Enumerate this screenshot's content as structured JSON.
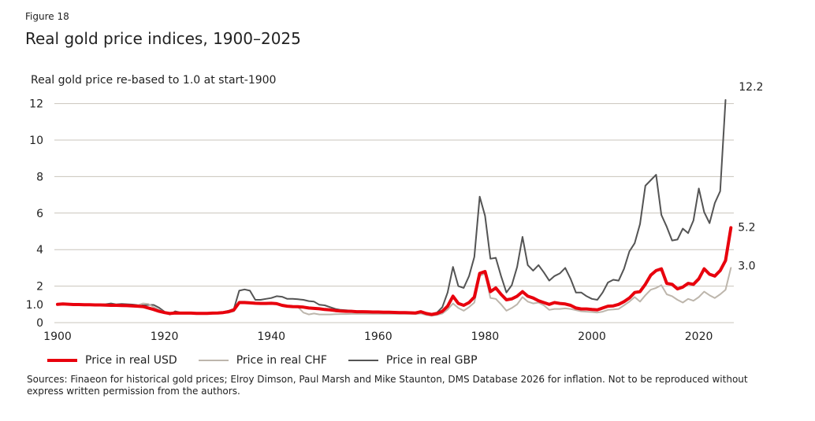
{
  "figure_label": "Figure 18",
  "title": "Real gold price indices, 1900–2025",
  "y_axis_caption": "Real gold price re-based to 1.0 at start-1900",
  "sources": "Sources: Finaeon for historical gold prices; Elroy Dimson, Paul Marsh and Mike Staunton, DMS Database 2026 for inflation. Not to be reproduced without express written permission from the authors.",
  "chart_data": {
    "type": "line",
    "title": "Real gold price indices, 1900–2025",
    "xlabel": "",
    "ylabel": "Real gold price re-based to 1.0 at start-1900",
    "xlim": [
      1900,
      2026
    ],
    "ylim": [
      0,
      12.5
    ],
    "grid": true,
    "x_ticks": [
      1900,
      1920,
      1940,
      1960,
      1980,
      2000,
      2020
    ],
    "x_tick_labels": [
      "1900",
      "1920",
      "1940",
      "1960",
      "1980",
      "2000",
      "2020"
    ],
    "y_ticks": [
      0,
      1,
      2,
      4,
      6,
      8,
      10,
      12
    ],
    "y_tick_labels": [
      "0",
      "1.0",
      "2",
      "4",
      "6",
      "8",
      "10",
      "12"
    ],
    "legend_position": "bottom",
    "x": [
      1900,
      1901,
      1902,
      1903,
      1904,
      1905,
      1906,
      1907,
      1908,
      1909,
      1910,
      1911,
      1912,
      1913,
      1914,
      1915,
      1916,
      1917,
      1918,
      1919,
      1920,
      1921,
      1922,
      1923,
      1924,
      1925,
      1926,
      1927,
      1928,
      1929,
      1930,
      1931,
      1932,
      1933,
      1934,
      1935,
      1936,
      1937,
      1938,
      1939,
      1940,
      1941,
      1942,
      1943,
      1944,
      1945,
      1946,
      1947,
      1948,
      1949,
      1950,
      1951,
      1952,
      1953,
      1954,
      1955,
      1956,
      1957,
      1958,
      1959,
      1960,
      1961,
      1962,
      1963,
      1964,
      1965,
      1966,
      1967,
      1968,
      1969,
      1970,
      1971,
      1972,
      1973,
      1974,
      1975,
      1976,
      1977,
      1978,
      1979,
      1980,
      1981,
      1982,
      1983,
      1984,
      1985,
      1986,
      1987,
      1988,
      1989,
      1990,
      1991,
      1992,
      1993,
      1994,
      1995,
      1996,
      1997,
      1998,
      1999,
      2000,
      2001,
      2002,
      2003,
      2004,
      2005,
      2006,
      2007,
      2008,
      2009,
      2010,
      2011,
      2012,
      2013,
      2014,
      2015,
      2016,
      2017,
      2018,
      2019,
      2020,
      2021,
      2022,
      2023,
      2024,
      2025,
      2026
    ],
    "series": [
      {
        "name": "Price in real USD",
        "color": "#e8000d",
        "values": [
          1.0,
          1.02,
          1.01,
          0.99,
          0.99,
          0.98,
          0.98,
          0.97,
          0.97,
          0.96,
          0.95,
          0.95,
          0.94,
          0.93,
          0.92,
          0.9,
          0.88,
          0.8,
          0.72,
          0.62,
          0.55,
          0.5,
          0.53,
          0.52,
          0.52,
          0.52,
          0.51,
          0.51,
          0.51,
          0.52,
          0.53,
          0.55,
          0.6,
          0.7,
          1.1,
          1.1,
          1.08,
          1.06,
          1.05,
          1.05,
          1.06,
          1.04,
          0.95,
          0.9,
          0.88,
          0.87,
          0.85,
          0.8,
          0.78,
          0.76,
          0.72,
          0.7,
          0.66,
          0.64,
          0.62,
          0.62,
          0.6,
          0.6,
          0.59,
          0.58,
          0.58,
          0.57,
          0.57,
          0.56,
          0.55,
          0.55,
          0.54,
          0.53,
          0.6,
          0.5,
          0.45,
          0.5,
          0.62,
          0.9,
          1.45,
          1.05,
          0.95,
          1.1,
          1.4,
          2.7,
          2.8,
          1.7,
          1.9,
          1.55,
          1.25,
          1.3,
          1.45,
          1.7,
          1.45,
          1.35,
          1.2,
          1.1,
          1.0,
          1.1,
          1.05,
          1.02,
          0.95,
          0.8,
          0.75,
          0.75,
          0.72,
          0.7,
          0.8,
          0.9,
          0.92,
          1.0,
          1.15,
          1.35,
          1.65,
          1.7,
          2.1,
          2.6,
          2.85,
          2.95,
          2.15,
          2.1,
          1.85,
          1.95,
          2.15,
          2.1,
          2.4,
          2.95,
          2.65,
          2.55,
          2.85,
          3.4,
          5.2
        ]
      },
      {
        "name": "Price in real CHF",
        "color": "#bdb6ac",
        "values": [
          1.0,
          1.02,
          1.01,
          0.99,
          0.99,
          0.98,
          0.98,
          0.97,
          0.97,
          0.96,
          0.95,
          0.95,
          0.94,
          0.93,
          0.93,
          0.95,
          1.05,
          1.02,
          0.85,
          0.7,
          0.58,
          0.48,
          0.55,
          0.52,
          0.52,
          0.52,
          0.51,
          0.51,
          0.51,
          0.52,
          0.52,
          0.53,
          0.55,
          0.62,
          1.15,
          1.15,
          1.12,
          1.1,
          1.08,
          1.08,
          1.1,
          1.0,
          0.95,
          0.92,
          0.9,
          0.85,
          0.55,
          0.45,
          0.5,
          0.45,
          0.45,
          0.45,
          0.46,
          0.47,
          0.47,
          0.48,
          0.48,
          0.48,
          0.48,
          0.48,
          0.48,
          0.48,
          0.48,
          0.48,
          0.48,
          0.48,
          0.48,
          0.47,
          0.5,
          0.42,
          0.38,
          0.42,
          0.5,
          0.72,
          1.05,
          0.8,
          0.65,
          0.85,
          1.1,
          2.55,
          2.7,
          1.35,
          1.3,
          1.0,
          0.65,
          0.8,
          1.0,
          1.4,
          1.15,
          1.05,
          1.1,
          0.95,
          0.7,
          0.75,
          0.75,
          0.78,
          0.75,
          0.68,
          0.62,
          0.6,
          0.58,
          0.55,
          0.6,
          0.7,
          0.72,
          0.75,
          0.95,
          1.15,
          1.4,
          1.15,
          1.5,
          1.8,
          1.9,
          2.05,
          1.55,
          1.45,
          1.25,
          1.1,
          1.3,
          1.2,
          1.4,
          1.7,
          1.5,
          1.35,
          1.55,
          1.8,
          3.0
        ]
      },
      {
        "name": "Price in real GBP",
        "color": "#545454",
        "values": [
          1.0,
          1.04,
          1.03,
          1.0,
          1.0,
          1.01,
          1.0,
          1.01,
          0.99,
          1.01,
          1.05,
          1.0,
          1.02,
          1.01,
          0.99,
          0.96,
          0.95,
          0.97,
          0.97,
          0.82,
          0.6,
          0.45,
          0.62,
          0.55,
          0.5,
          0.5,
          0.48,
          0.48,
          0.48,
          0.5,
          0.52,
          0.58,
          0.65,
          0.75,
          1.75,
          1.82,
          1.75,
          1.25,
          1.25,
          1.3,
          1.35,
          1.45,
          1.42,
          1.3,
          1.3,
          1.28,
          1.25,
          1.18,
          1.15,
          0.98,
          0.95,
          0.85,
          0.75,
          0.7,
          0.68,
          0.65,
          0.62,
          0.6,
          0.58,
          0.58,
          0.58,
          0.57,
          0.57,
          0.56,
          0.56,
          0.56,
          0.55,
          0.56,
          0.62,
          0.52,
          0.48,
          0.55,
          0.85,
          1.65,
          3.05,
          2.0,
          1.9,
          2.55,
          3.6,
          6.9,
          5.85,
          3.5,
          3.55,
          2.55,
          1.65,
          2.05,
          3.05,
          4.7,
          3.15,
          2.85,
          3.15,
          2.75,
          2.3,
          2.55,
          2.7,
          3.0,
          2.4,
          1.65,
          1.65,
          1.45,
          1.3,
          1.25,
          1.65,
          2.2,
          2.35,
          2.3,
          2.95,
          3.9,
          4.35,
          5.4,
          7.5,
          7.8,
          8.1,
          5.9,
          5.25,
          4.5,
          4.55,
          5.15,
          4.9,
          5.6,
          7.35,
          6.05,
          5.45,
          6.55,
          7.2,
          12.2
        ]
      }
    ],
    "end_labels": [
      {
        "series": "Price in real GBP",
        "text": "12.2"
      },
      {
        "series": "Price in real USD",
        "text": "5.2"
      },
      {
        "series": "Price in real CHF",
        "text": "3.0"
      }
    ]
  },
  "legend": [
    {
      "label": "Price in real USD",
      "color": "#e8000d",
      "weight": "thick"
    },
    {
      "label": "Price in real CHF",
      "color": "#bdb6ac",
      "weight": "thin"
    },
    {
      "label": "Price in real GBP",
      "color": "#545454",
      "weight": "thin"
    }
  ]
}
